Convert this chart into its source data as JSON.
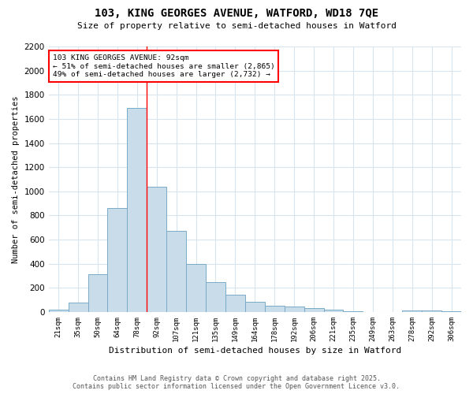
{
  "title1": "103, KING GEORGES AVENUE, WATFORD, WD18 7QE",
  "title2": "Size of property relative to semi-detached houses in Watford",
  "xlabel": "Distribution of semi-detached houses by size in Watford",
  "ylabel": "Number of semi-detached properties",
  "categories": [
    "21sqm",
    "35sqm",
    "50sqm",
    "64sqm",
    "78sqm",
    "92sqm",
    "107sqm",
    "121sqm",
    "135sqm",
    "149sqm",
    "164sqm",
    "178sqm",
    "192sqm",
    "206sqm",
    "221sqm",
    "235sqm",
    "249sqm",
    "263sqm",
    "278sqm",
    "292sqm",
    "306sqm"
  ],
  "values": [
    20,
    75,
    310,
    860,
    1690,
    1040,
    670,
    395,
    245,
    145,
    85,
    50,
    45,
    35,
    20,
    8,
    2,
    0,
    10,
    15,
    5
  ],
  "bar_color": "#c9dcea",
  "bar_edge_color": "#7aaac8",
  "highlight_index": 5,
  "annotation_title": "103 KING GEORGES AVENUE: 92sqm",
  "annotation_line1": "← 51% of semi-detached houses are smaller (2,865)",
  "annotation_line2": "49% of semi-detached houses are larger (2,732) →",
  "ylim": [
    0,
    2200
  ],
  "yticks": [
    0,
    200,
    400,
    600,
    800,
    1000,
    1200,
    1400,
    1600,
    1800,
    2000,
    2200
  ],
  "footer1": "Contains HM Land Registry data © Crown copyright and database right 2025.",
  "footer2": "Contains public sector information licensed under the Open Government Licence v3.0.",
  "background_color": "#ffffff",
  "grid_color": "#d8e4ee"
}
